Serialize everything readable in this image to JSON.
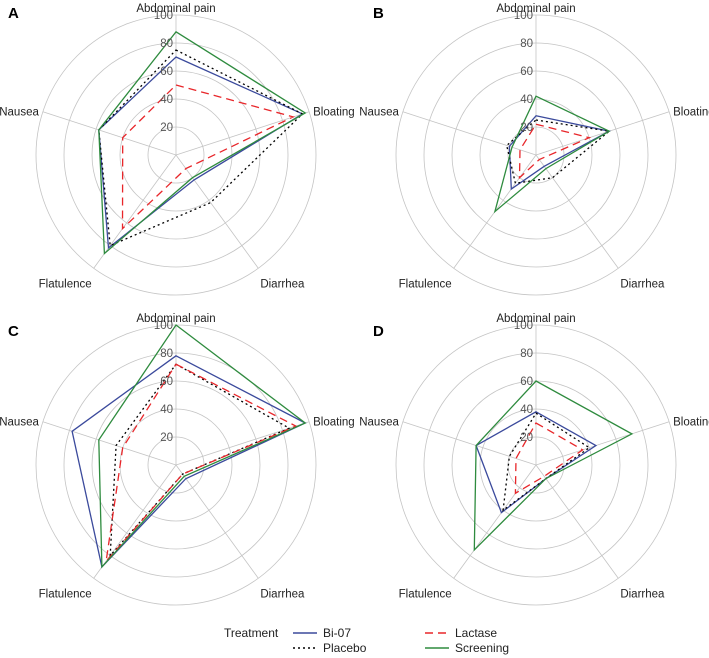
{
  "chart_data": {
    "type": "radar",
    "axes": [
      "Abdominal pain",
      "Bloating",
      "Diarrhea",
      "Flatulence",
      "Nausea"
    ],
    "radial_ticks": [
      20,
      40,
      60,
      80,
      100
    ],
    "rlim": [
      0,
      100
    ],
    "legend": {
      "title": "Treatment",
      "placement": "bottom",
      "entries": [
        {
          "name": "Bi-07",
          "color": "#3b4a9c",
          "dash": "solid"
        },
        {
          "name": "Placebo",
          "color": "#000000",
          "dash": "dotted"
        },
        {
          "name": "Lactase",
          "color": "#e8262a",
          "dash": "dashed"
        },
        {
          "name": "Screening",
          "color": "#2e8b3e",
          "dash": "solid"
        }
      ]
    },
    "panels": [
      {
        "label": "A",
        "series": [
          {
            "name": "Bi-07",
            "values": [
              70,
              95,
              22,
              82,
              58
            ]
          },
          {
            "name": "Placebo",
            "values": [
              75,
              95,
              42,
              80,
              58
            ]
          },
          {
            "name": "Lactase",
            "values": [
              50,
              88,
              12,
              65,
              40
            ]
          },
          {
            "name": "Screening",
            "values": [
              88,
              97,
              20,
              87,
              58
            ]
          }
        ]
      },
      {
        "label": "B",
        "series": [
          {
            "name": "Bi-07",
            "values": [
              28,
              55,
              10,
              30,
              20
            ]
          },
          {
            "name": "Placebo",
            "values": [
              25,
              55,
              20,
              25,
              22
            ]
          },
          {
            "name": "Lactase",
            "values": [
              22,
              40,
              4,
              20,
              12
            ]
          },
          {
            "name": "Screening",
            "values": [
              42,
              55,
              12,
              50,
              18
            ]
          }
        ]
      },
      {
        "label": "C",
        "series": [
          {
            "name": "Bi-07",
            "values": [
              78,
              97,
              12,
              90,
              78
            ]
          },
          {
            "name": "Placebo",
            "values": [
              72,
              85,
              8,
              80,
              45
            ]
          },
          {
            "name": "Lactase",
            "values": [
              72,
              90,
              8,
              85,
              40
            ]
          },
          {
            "name": "Screening",
            "values": [
              100,
              97,
              10,
              90,
              58
            ]
          }
        ]
      },
      {
        "label": "D",
        "series": [
          {
            "name": "Bi-07",
            "values": [
              38,
              45,
              12,
              42,
              45
            ]
          },
          {
            "name": "Placebo",
            "values": [
              37,
              40,
              12,
              40,
              20
            ]
          },
          {
            "name": "Lactase",
            "values": [
              30,
              35,
              10,
              25,
              15
            ]
          },
          {
            "name": "Screening",
            "values": [
              60,
              72,
              12,
              75,
              45
            ]
          }
        ]
      }
    ]
  }
}
